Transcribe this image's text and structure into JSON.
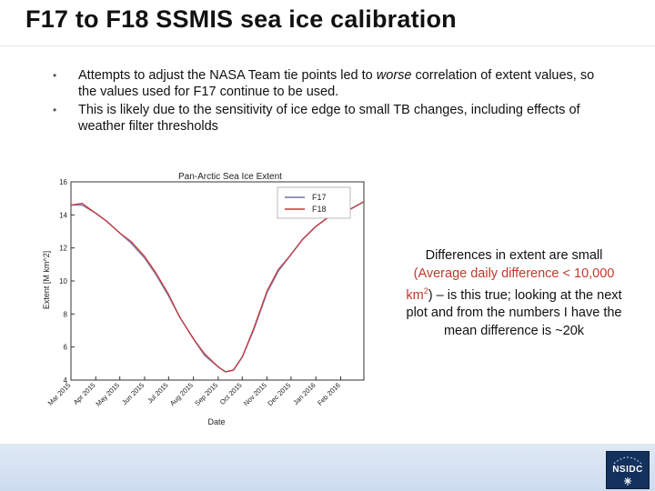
{
  "slide": {
    "title": "F17 to F18 SSMIS sea ice calibration",
    "bullets": [
      {
        "pre": "Attempts to adjust the NASA Team tie points led to ",
        "em": "worse",
        "post": " correlation of extent values, so the values used for F17 continue to be used."
      },
      {
        "pre": "This is likely due to the sensitivity of ice edge to small TB changes, including effects of weather filter thresholds",
        "em": "",
        "post": ""
      }
    ],
    "note": {
      "line1": "Differences in extent are small",
      "line2": "(Average daily difference < 10,000 km",
      "sup": "2",
      "line3": ") – is this true; looking at the next plot and from the numbers I have the mean difference is ~20k"
    },
    "logo_text": "NSIDC"
  },
  "colors": {
    "f17": "#7070a0",
    "f18": "#d0302f",
    "note_red": "#c0392b",
    "footer": "#d6e3f2",
    "logo": "#14305c"
  },
  "chart_data": {
    "type": "line",
    "title": "Pan-Arctic Sea Ice Extent",
    "xlabel": "Date",
    "ylabel": "Extent [M km^2]",
    "ylim": [
      4,
      16
    ],
    "yticks": [
      4,
      6,
      8,
      10,
      12,
      14,
      16
    ],
    "x_tick_labels": [
      "Mar 2015",
      "Apr 2015",
      "May 2015",
      "Jun 2015",
      "Jul 2015",
      "Aug 2015",
      "Sep 2015",
      "Oct 2015",
      "Nov 2015",
      "Dec 2015",
      "Jan 2016",
      "Feb 2016"
    ],
    "legend": {
      "position": "top-right",
      "entries": [
        "F17",
        "F18"
      ]
    },
    "x": [
      "2015-03-01",
      "2015-03-15",
      "2015-04-01",
      "2015-04-15",
      "2015-05-01",
      "2015-05-15",
      "2015-06-01",
      "2015-06-15",
      "2015-07-01",
      "2015-07-15",
      "2015-08-01",
      "2015-08-15",
      "2015-09-01",
      "2015-09-10",
      "2015-09-20",
      "2015-10-01",
      "2015-10-15",
      "2015-11-01",
      "2015-11-15",
      "2015-12-01",
      "2015-12-15",
      "2016-01-01",
      "2016-01-15",
      "2016-02-01",
      "2016-02-15",
      "2016-03-01"
    ],
    "series": [
      {
        "name": "F17",
        "values": [
          14.6,
          14.6,
          14.1,
          13.6,
          12.9,
          12.3,
          11.4,
          10.4,
          9.1,
          7.8,
          6.5,
          5.5,
          4.8,
          4.5,
          4.6,
          5.4,
          7.0,
          9.3,
          10.6,
          11.6,
          12.5,
          13.3,
          13.8,
          14.1,
          14.4,
          14.8
        ]
      },
      {
        "name": "F18",
        "values": [
          14.6,
          14.7,
          14.1,
          13.6,
          12.9,
          12.4,
          11.5,
          10.5,
          9.2,
          7.8,
          6.5,
          5.6,
          4.8,
          4.5,
          4.6,
          5.4,
          7.1,
          9.4,
          10.7,
          11.6,
          12.5,
          13.3,
          13.8,
          14.1,
          14.4,
          14.8
        ]
      }
    ]
  }
}
